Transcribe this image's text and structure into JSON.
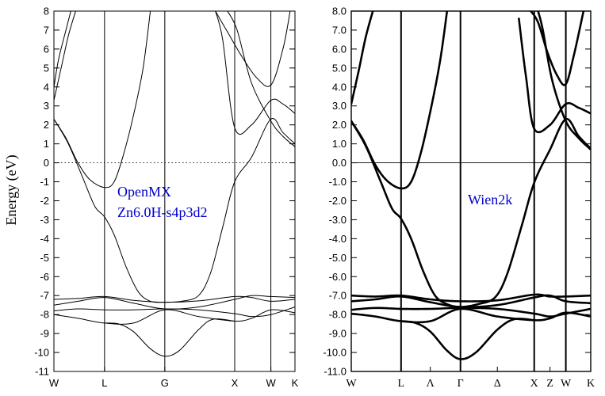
{
  "chart_data": [
    {
      "type": "line",
      "title": "",
      "annotation": [
        "OpenMX",
        "Zn6.0H-s4p3d2"
      ],
      "ylabel": "Energy (eV)",
      "xlabel": "",
      "ylim": [
        -11,
        8
      ],
      "yticks": [
        8,
        7,
        6,
        5,
        4,
        3,
        2,
        1,
        0,
        -1,
        -2,
        -3,
        -4,
        -5,
        -6,
        -7,
        -8,
        -9,
        -10,
        -11
      ],
      "ytick_labels": [
        "8",
        "7",
        "6",
        "5",
        "4",
        "3",
        "2",
        "1",
        "0",
        "-1",
        "-2",
        "-3",
        "-4",
        "-5",
        "-6",
        "-7",
        "-8",
        "-9",
        "-10",
        "-11"
      ],
      "kpath": [
        {
          "label": "W",
          "k": 0
        },
        {
          "label": "L",
          "k": 0.21
        },
        {
          "label": "G",
          "k": 0.46
        },
        {
          "label": "X",
          "k": 0.75
        },
        {
          "label": "W",
          "k": 0.9
        },
        {
          "label": "K",
          "k": 1
        }
      ],
      "fermi_line": {
        "y": 0,
        "style": "dotted"
      },
      "grid": false,
      "series": [
        {
          "points": [
            [
              0,
              -7.2
            ],
            [
              0.1,
              -7.15
            ],
            [
              0.21,
              -7.05
            ],
            [
              0.33,
              -7.25
            ],
            [
              0.46,
              -7.35
            ],
            [
              0.6,
              -7.28
            ],
            [
              0.75,
              -7.05
            ],
            [
              0.82,
              -7.1
            ],
            [
              0.9,
              -7.3
            ],
            [
              1,
              -7.2
            ]
          ]
        },
        {
          "points": [
            [
              0,
              -7.5
            ],
            [
              0.1,
              -7.3
            ],
            [
              0.21,
              -7.1
            ],
            [
              0.33,
              -7.4
            ],
            [
              0.46,
              -7.7
            ],
            [
              0.6,
              -7.6
            ],
            [
              0.75,
              -7.2
            ],
            [
              0.82,
              -7.0
            ],
            [
              0.9,
              -7.05
            ],
            [
              1,
              -7.1
            ]
          ]
        },
        {
          "points": [
            [
              0,
              -7.8
            ],
            [
              0.1,
              -7.7
            ],
            [
              0.21,
              -7.75
            ],
            [
              0.33,
              -7.75
            ],
            [
              0.46,
              -7.7
            ],
            [
              0.6,
              -7.75
            ],
            [
              0.75,
              -7.95
            ],
            [
              0.82,
              -8.1
            ],
            [
              0.9,
              -8.0
            ],
            [
              1,
              -7.6
            ]
          ]
        },
        {
          "points": [
            [
              0,
              -8.0
            ],
            [
              0.1,
              -8.2
            ],
            [
              0.21,
              -8.45
            ],
            [
              0.33,
              -8.45
            ],
            [
              0.46,
              -7.75
            ],
            [
              0.6,
              -8.1
            ],
            [
              0.75,
              -8.35
            ],
            [
              0.82,
              -8.2
            ],
            [
              0.9,
              -7.75
            ],
            [
              1,
              -7.9
            ]
          ]
        },
        {
          "points": [
            [
              0.21,
              -8.45
            ],
            [
              0.27,
              -8.5
            ],
            [
              0.33,
              -8.9
            ],
            [
              0.4,
              -9.8
            ],
            [
              0.46,
              -10.2
            ],
            [
              0.52,
              -9.9
            ],
            [
              0.6,
              -8.8
            ],
            [
              0.66,
              -8.25
            ],
            [
              0.75,
              -8.35
            ]
          ]
        },
        {
          "points": [
            [
              0,
              2.3
            ],
            [
              0.05,
              1.3
            ],
            [
              0.1,
              0.0
            ],
            [
              0.15,
              -0.9
            ],
            [
              0.21,
              -1.3
            ],
            [
              0.25,
              -1.0
            ],
            [
              0.29,
              0.5
            ],
            [
              0.33,
              2.5
            ],
            [
              0.37,
              5.0
            ],
            [
              0.4,
              8.0
            ]
          ]
        },
        {
          "points": [
            [
              0,
              2.3
            ],
            [
              0.06,
              1.0
            ],
            [
              0.12,
              -0.8
            ],
            [
              0.17,
              -2.3
            ],
            [
              0.21,
              -2.85
            ],
            [
              0.25,
              -3.8
            ],
            [
              0.3,
              -5.5
            ],
            [
              0.35,
              -6.8
            ],
            [
              0.4,
              -7.3
            ],
            [
              0.46,
              -7.35
            ],
            [
              0.53,
              -7.3
            ],
            [
              0.6,
              -7.0
            ],
            [
              0.65,
              -5.8
            ],
            [
              0.7,
              -3.4
            ],
            [
              0.75,
              -1.0
            ],
            [
              0.82,
              0.3
            ],
            [
              0.9,
              2.3
            ],
            [
              0.95,
              1.6
            ],
            [
              1,
              1.0
            ]
          ]
        },
        {
          "points": [
            [
              0,
              3.3
            ],
            [
              0.03,
              5.0
            ],
            [
              0.06,
              6.7
            ],
            [
              0.09,
              8.0
            ]
          ]
        },
        {
          "points": [
            [
              0,
              4.0
            ],
            [
              0.02,
              5.5
            ],
            [
              0.05,
              7.0
            ],
            [
              0.07,
              8.0
            ]
          ]
        },
        {
          "points": [
            [
              0.67,
              8.0
            ],
            [
              0.7,
              6.5
            ],
            [
              0.75,
              1.85
            ],
            [
              0.82,
              2.0
            ],
            [
              0.9,
              3.3
            ],
            [
              0.95,
              3.1
            ],
            [
              1,
              2.6
            ]
          ]
        },
        {
          "points": [
            [
              0.67,
              8.0
            ],
            [
              0.72,
              6.9
            ],
            [
              0.78,
              5.6
            ],
            [
              0.84,
              4.5
            ],
            [
              0.9,
              4.1
            ],
            [
              0.95,
              6.0
            ],
            [
              0.98,
              8.0
            ]
          ]
        },
        {
          "points": [
            [
              0.72,
              8.0
            ],
            [
              0.76,
              7.0
            ],
            [
              0.82,
              4.2
            ],
            [
              0.9,
              2.2
            ],
            [
              0.95,
              1.4
            ],
            [
              1,
              0.85
            ]
          ]
        }
      ]
    },
    {
      "type": "line",
      "title": "",
      "annotation": [
        "Wien2k"
      ],
      "ylabel": "",
      "xlabel": "",
      "ylim": [
        -11,
        8
      ],
      "yticks": [
        8,
        7,
        6,
        5,
        4,
        3,
        2,
        1,
        0,
        -1,
        -2,
        -3,
        -4,
        -5,
        -6,
        -7,
        -8,
        -9,
        -10,
        -11
      ],
      "ytick_labels": [
        "8.0",
        "7.0",
        "6.0",
        "5.0",
        "4.0",
        "3.0",
        "2.0",
        "1.0",
        "0.0",
        "-1.0",
        "-2.0",
        "-3.0",
        "-4.0",
        "-5.0",
        "-6.0",
        "-7.0",
        "-8.0",
        "-9.0",
        "-10.0",
        "-11.0"
      ],
      "kpath": [
        {
          "label": "W",
          "k": 0
        },
        {
          "label": "L",
          "k": 0.208
        },
        {
          "label": "Λ",
          "k": 0.33
        },
        {
          "label": "Γ",
          "k": 0.456
        },
        {
          "label": "Δ",
          "k": 0.61
        },
        {
          "label": "X",
          "k": 0.764
        },
        {
          "label": "Z",
          "k": 0.83
        },
        {
          "label": "W",
          "k": 0.896
        },
        {
          "label": "K",
          "k": 1
        }
      ],
      "kpath_lines": [
        0.208,
        0.456,
        0.764,
        0.896
      ],
      "fermi_line": {
        "y": 0,
        "style": "solid"
      },
      "grid": false,
      "series": [
        {
          "points": [
            [
              0,
              -7.0
            ],
            [
              0.1,
              -7.05
            ],
            [
              0.208,
              -7.0
            ],
            [
              0.33,
              -7.2
            ],
            [
              0.456,
              -7.3
            ],
            [
              0.61,
              -7.25
            ],
            [
              0.764,
              -6.95
            ],
            [
              0.83,
              -7.05
            ],
            [
              0.896,
              -7.05
            ],
            [
              1,
              -7.0
            ]
          ]
        },
        {
          "points": [
            [
              0,
              -7.3
            ],
            [
              0.1,
              -7.2
            ],
            [
              0.208,
              -7.05
            ],
            [
              0.33,
              -7.35
            ],
            [
              0.456,
              -7.6
            ],
            [
              0.61,
              -7.5
            ],
            [
              0.764,
              -7.1
            ],
            [
              0.83,
              -7.0
            ],
            [
              0.896,
              -7.3
            ],
            [
              1,
              -7.4
            ]
          ]
        },
        {
          "points": [
            [
              0,
              -7.75
            ],
            [
              0.1,
              -7.65
            ],
            [
              0.208,
              -7.7
            ],
            [
              0.33,
              -7.7
            ],
            [
              0.456,
              -7.65
            ],
            [
              0.61,
              -7.7
            ],
            [
              0.764,
              -7.95
            ],
            [
              0.83,
              -8.1
            ],
            [
              0.896,
              -7.95
            ],
            [
              1,
              -7.7
            ]
          ]
        },
        {
          "points": [
            [
              0,
              -7.95
            ],
            [
              0.1,
              -8.1
            ],
            [
              0.208,
              -8.35
            ],
            [
              0.33,
              -8.35
            ],
            [
              0.456,
              -7.7
            ],
            [
              0.61,
              -8.1
            ],
            [
              0.764,
              -8.3
            ],
            [
              0.83,
              -8.2
            ],
            [
              0.896,
              -7.9
            ],
            [
              1,
              -8.1
            ]
          ]
        },
        {
          "points": [
            [
              0.208,
              -8.35
            ],
            [
              0.27,
              -8.45
            ],
            [
              0.33,
              -8.9
            ],
            [
              0.4,
              -9.9
            ],
            [
              0.456,
              -10.35
            ],
            [
              0.52,
              -10.0
            ],
            [
              0.61,
              -8.8
            ],
            [
              0.68,
              -8.25
            ],
            [
              0.764,
              -8.3
            ]
          ]
        },
        {
          "points": [
            [
              0,
              2.2
            ],
            [
              0.05,
              1.2
            ],
            [
              0.1,
              -0.1
            ],
            [
              0.15,
              -0.95
            ],
            [
              0.208,
              -1.35
            ],
            [
              0.25,
              -1.0
            ],
            [
              0.29,
              0.5
            ],
            [
              0.33,
              2.7
            ],
            [
              0.37,
              5.3
            ],
            [
              0.4,
              8.0
            ]
          ]
        },
        {
          "points": [
            [
              0,
              2.2
            ],
            [
              0.06,
              0.9
            ],
            [
              0.12,
              -0.9
            ],
            [
              0.17,
              -2.4
            ],
            [
              0.208,
              -2.95
            ],
            [
              0.25,
              -4.0
            ],
            [
              0.3,
              -5.7
            ],
            [
              0.35,
              -7.0
            ],
            [
              0.4,
              -7.45
            ],
            [
              0.456,
              -7.6
            ],
            [
              0.53,
              -7.45
            ],
            [
              0.6,
              -7.1
            ],
            [
              0.65,
              -5.9
            ],
            [
              0.71,
              -3.4
            ],
            [
              0.764,
              -1.05
            ],
            [
              0.83,
              0.7
            ],
            [
              0.896,
              2.3
            ],
            [
              0.95,
              1.4
            ],
            [
              1,
              0.75
            ]
          ]
        },
        {
          "points": [
            [
              0,
              3.1
            ],
            [
              0.03,
              4.8
            ],
            [
              0.06,
              6.6
            ],
            [
              0.09,
              8.0
            ]
          ]
        },
        {
          "points": [
            [
              0.7,
              7.6
            ],
            [
              0.73,
              4.5
            ],
            [
              0.764,
              1.8
            ],
            [
              0.83,
              2.0
            ],
            [
              0.896,
              3.1
            ],
            [
              0.95,
              2.9
            ],
            [
              1,
              2.6
            ]
          ]
        },
        {
          "points": [
            [
              0.75,
              8.0
            ],
            [
              0.78,
              7.4
            ],
            [
              0.82,
              5.8
            ],
            [
              0.86,
              4.6
            ],
            [
              0.896,
              4.15
            ],
            [
              0.93,
              5.7
            ],
            [
              0.97,
              8.0
            ]
          ]
        },
        {
          "points": [
            [
              0.78,
              8.0
            ],
            [
              0.8,
              7.0
            ],
            [
              0.84,
              4.3
            ],
            [
              0.896,
              2.2
            ],
            [
              0.95,
              1.3
            ],
            [
              1,
              0.7
            ]
          ]
        }
      ]
    }
  ]
}
